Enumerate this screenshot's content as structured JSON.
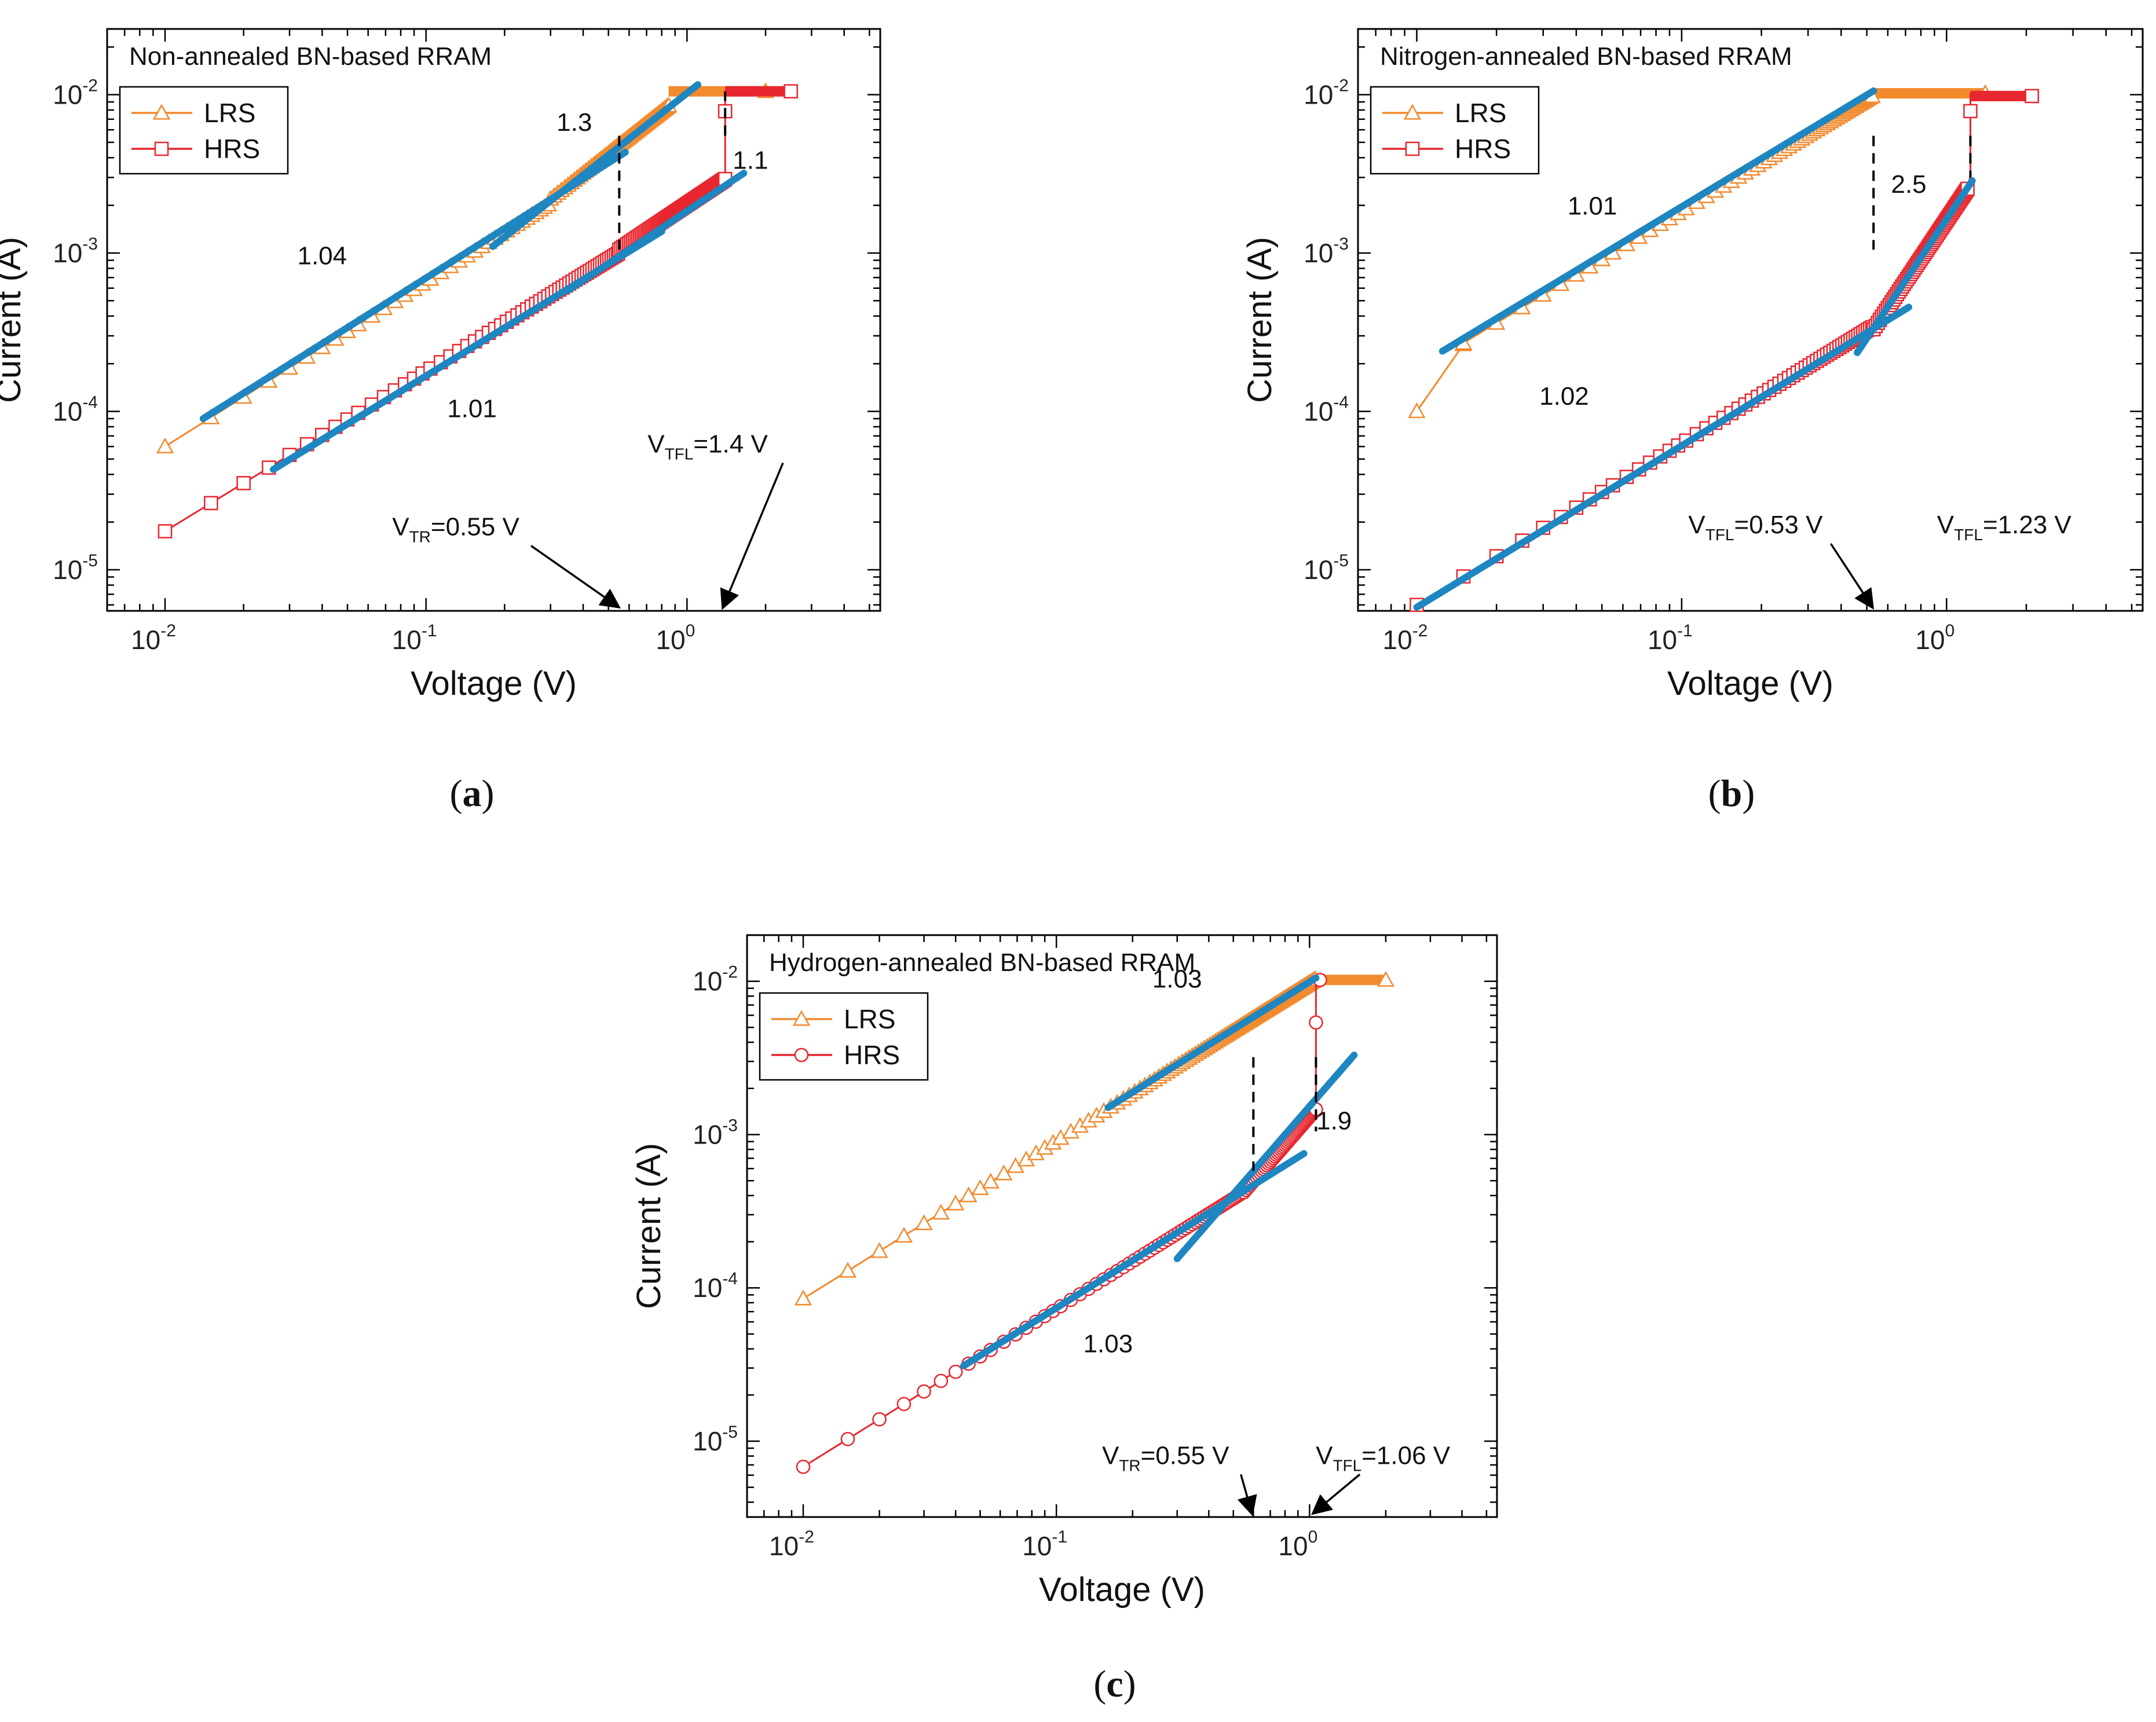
{
  "colors": {
    "lrs": "#f28a2e",
    "hrs": "#e8262f",
    "fit": "#1e86c0",
    "axis": "#000000"
  },
  "chart_data": [
    {
      "id": "a",
      "type": "line",
      "panel_label": "a",
      "title": "Non-annealed BN-based RRAM",
      "xlabel": "Voltage (V)",
      "ylabel": "Current (A)",
      "xscale": "log",
      "yscale": "log",
      "xlim": [
        0.006,
        5.5
      ],
      "ylim": [
        5.5e-06,
        0.026
      ],
      "xticks": [
        {
          "base": "10",
          "exp": "-2",
          "v": 0.01
        },
        {
          "base": "10",
          "exp": "-1",
          "v": 0.1
        },
        {
          "base": "10",
          "exp": "0",
          "v": 1
        }
      ],
      "yticks": [
        {
          "base": "10",
          "exp": "-5",
          "v": 1e-05
        },
        {
          "base": "10",
          "exp": "-4",
          "v": 0.0001
        },
        {
          "base": "10",
          "exp": "-3",
          "v": 0.001
        },
        {
          "base": "10",
          "exp": "-2",
          "v": 0.01
        }
      ],
      "legend": [
        {
          "name": "LRS",
          "marker": "triangle"
        },
        {
          "name": "HRS",
          "marker": "square"
        }
      ],
      "series": [
        {
          "name": "LRS",
          "marker": "triangle",
          "segments": [
            {
              "x0": 0.01,
              "y0": 6e-05,
              "x1": 0.3,
              "y1": 0.0022,
              "slope": 1.04
            },
            {
              "x0": 0.3,
              "y0": 0.0022,
              "x1": 0.85,
              "y1": 0.0105,
              "slope": 1.3
            }
          ],
          "plateau": {
            "x0": 0.85,
            "x1": 2.0,
            "y": 0.0105
          }
        },
        {
          "name": "HRS",
          "marker": "square",
          "segments": [
            {
              "x0": 0.01,
              "y0": 1.75e-05,
              "x1": 0.55,
              "y1": 0.00105,
              "slope": 1.01
            },
            {
              "x0": 0.55,
              "y0": 0.00105,
              "x1": 1.4,
              "y1": 0.003,
              "slope": 1.1
            }
          ],
          "jump": {
            "x": 1.4,
            "y0": 0.003,
            "y1": 0.0105
          },
          "plateau": {
            "x0": 1.4,
            "x1": 2.5,
            "y": 0.0105
          }
        }
      ],
      "fits": [
        {
          "x0": 0.014,
          "x1": 0.58,
          "slope": 1.04,
          "y0": 9e-05
        },
        {
          "x0": 0.18,
          "x1": 1.1,
          "slope": 1.3,
          "y0": 0.0011
        },
        {
          "x0": 0.026,
          "x1": 0.8,
          "slope": 1.01,
          "y0": 4.3e-05
        },
        {
          "x0": 0.35,
          "x1": 1.65,
          "slope": 1.1,
          "y0": 0.00058
        }
      ],
      "annotations": [
        {
          "text": "1.3",
          "x": 0.37,
          "y": 0.0059
        },
        {
          "text": "1.04",
          "x": 0.04,
          "y": 0.00085
        },
        {
          "text": "1.1",
          "x": 1.75,
          "y": 0.0034
        },
        {
          "text": "1.01",
          "x": 0.15,
          "y": 9.2e-05
        }
      ],
      "vlines": [
        {
          "x": 0.55,
          "y0": 0.0055,
          "y1": 0.00105
        },
        {
          "x": 1.4,
          "y0": 0.0055,
          "y1": 0.0105
        }
      ],
      "markers_text": [
        {
          "pre": "V",
          "sub": "TR",
          "post": "=0.55 V",
          "x": 0.13,
          "y": 1.65e-05,
          "arrow_to_x": 0.55
        },
        {
          "pre": "V",
          "sub": "TFL",
          "post": "=1.4 V",
          "x": 1.2,
          "y": 5.5e-05,
          "arrow_to_x": 1.4
        }
      ]
    },
    {
      "id": "b",
      "type": "line",
      "panel_label": "b",
      "title": "Nitrogen-annealed BN-based RRAM",
      "xlabel": "Voltage (V)",
      "ylabel": "Current (A)",
      "xscale": "log",
      "yscale": "log",
      "xlim": [
        0.006,
        5.5
      ],
      "ylim": [
        5.5e-06,
        0.026
      ],
      "xticks": [
        {
          "base": "10",
          "exp": "-2",
          "v": 0.01
        },
        {
          "base": "10",
          "exp": "-1",
          "v": 0.1
        },
        {
          "base": "10",
          "exp": "0",
          "v": 1
        }
      ],
      "yticks": [
        {
          "base": "10",
          "exp": "-5",
          "v": 1e-05
        },
        {
          "base": "10",
          "exp": "-4",
          "v": 0.0001
        },
        {
          "base": "10",
          "exp": "-3",
          "v": 0.001
        },
        {
          "base": "10",
          "exp": "-2",
          "v": 0.01
        }
      ],
      "legend": [
        {
          "name": "LRS",
          "marker": "triangle"
        },
        {
          "name": "HRS",
          "marker": "square"
        }
      ],
      "series": [
        {
          "name": "LRS",
          "marker": "triangle",
          "segments": [
            {
              "x0": 0.01,
              "y0": 0.0001,
              "x1": 0.015,
              "y1": 0.00027,
              "slope": 2.4
            },
            {
              "x0": 0.015,
              "y0": 0.00027,
              "x1": 0.53,
              "y1": 0.0102,
              "slope": 1.01
            }
          ],
          "plateau": {
            "x0": 0.53,
            "x1": 1.4,
            "y": 0.0102
          }
        },
        {
          "name": "HRS",
          "marker": "square",
          "segments": [
            {
              "x0": 0.01,
              "y0": 6e-06,
              "x1": 0.53,
              "y1": 0.00033,
              "slope": 1.02
            },
            {
              "x0": 0.53,
              "y0": 0.00033,
              "x1": 1.2,
              "y1": 0.0031,
              "slope": 2.5
            }
          ],
          "jump": {
            "x": 1.23,
            "y0": 0.0031,
            "y1": 0.0102
          },
          "plateau": {
            "x0": 1.23,
            "x1": 2.1,
            "y": 0.0098
          }
        }
      ],
      "fits": [
        {
          "x0": 0.0125,
          "x1": 0.53,
          "slope": 1.01,
          "y0": 0.00024
        },
        {
          "x0": 0.01,
          "x1": 0.72,
          "slope": 1.02,
          "y0": 5.8e-06
        },
        {
          "x0": 0.46,
          "x1": 1.25,
          "slope": 2.5,
          "y0": 0.000235
        }
      ],
      "annotations": [
        {
          "text": "1.01",
          "x": 0.046,
          "y": 0.00175
        },
        {
          "text": "2.5",
          "x": 0.72,
          "y": 0.0024
        },
        {
          "text": "1.02",
          "x": 0.036,
          "y": 0.00011
        }
      ],
      "vlines": [
        {
          "x": 0.53,
          "y0": 0.0055,
          "y1": 0.00105
        },
        {
          "x": 1.23,
          "y0": 0.0055,
          "y1": 0.003
        }
      ],
      "markers_text": [
        {
          "pre": "V",
          "sub": "TFL",
          "post": "=0.53 V",
          "x": 0.19,
          "y": 1.7e-05,
          "arrow_to_x": 0.53
        },
        {
          "pre": "V",
          "sub": "TFL",
          "post": "=1.23 V",
          "x": 1.65,
          "y": 1.7e-05,
          "arrow_to_x": null
        }
      ]
    },
    {
      "id": "c",
      "type": "line",
      "panel_label": "c",
      "title": "Hydrogen-annealed BN-based RRAM",
      "xlabel": "Voltage (V)",
      "ylabel": "Current (A)",
      "xscale": "log",
      "yscale": "log",
      "xlim": [
        0.006,
        5.5
      ],
      "ylim": [
        3.2e-06,
        0.02
      ],
      "xticks": [
        {
          "base": "10",
          "exp": "-2",
          "v": 0.01
        },
        {
          "base": "10",
          "exp": "-1",
          "v": 0.1
        },
        {
          "base": "10",
          "exp": "0",
          "v": 1
        }
      ],
      "yticks": [
        {
          "base": "10",
          "exp": "-5",
          "v": 1e-05
        },
        {
          "base": "10",
          "exp": "-4",
          "v": 0.0001
        },
        {
          "base": "10",
          "exp": "-3",
          "v": 0.001
        },
        {
          "base": "10",
          "exp": "-2",
          "v": 0.01
        }
      ],
      "legend": [
        {
          "name": "LRS",
          "marker": "triangle"
        },
        {
          "name": "HRS",
          "marker": "circle"
        }
      ],
      "series": [
        {
          "name": "LRS",
          "marker": "triangle",
          "segments": [
            {
              "x0": 0.01,
              "y0": 8.5e-05,
              "x1": 1.06,
              "y1": 0.0102,
              "slope": 1.03
            }
          ],
          "plateau": {
            "x0": 1.06,
            "x1": 2.0,
            "y": 0.0102
          }
        },
        {
          "name": "HRS",
          "marker": "circle",
          "segments": [
            {
              "x0": 0.01,
              "y0": 6.8e-06,
              "x1": 0.55,
              "y1": 0.00042,
              "slope": 1.03
            },
            {
              "x0": 0.55,
              "y0": 0.00042,
              "x1": 1.06,
              "y1": 0.00145,
              "slope": 1.9
            }
          ],
          "jump": {
            "x": 1.06,
            "y0": 0.00145,
            "y1": 0.0102
          },
          "plateau": {
            "x0": 1.06,
            "x1": 1.1,
            "y": 0.0102
          }
        }
      ],
      "fits": [
        {
          "x0": 0.16,
          "x1": 1.06,
          "slope": 1.03,
          "y0": 0.0015
        },
        {
          "x0": 0.043,
          "x1": 0.95,
          "slope": 1.03,
          "y0": 3.1e-05
        },
        {
          "x0": 0.3,
          "x1": 1.5,
          "slope": 1.9,
          "y0": 0.000155
        }
      ],
      "annotations": [
        {
          "text": "1.03",
          "x": 0.3,
          "y": 0.0091
        },
        {
          "text": "1.9",
          "x": 1.25,
          "y": 0.00108
        },
        {
          "text": "1.03",
          "x": 0.16,
          "y": 3.8e-05
        }
      ],
      "vlines": [
        {
          "x": 0.6,
          "y0": 0.0032,
          "y1": 0.00058
        },
        {
          "x": 1.06,
          "y0": 0.0032,
          "y1": 0.00105
        }
      ],
      "markers_text": [
        {
          "pre": "V",
          "sub": "TR",
          "post": "=0.55 V",
          "x": 0.27,
          "y": 7.1e-06,
          "arrow_to_x": 0.6
        },
        {
          "pre": "V",
          "sub": "TFL",
          "post": "=1.06 V",
          "x": 1.95,
          "y": 7.1e-06,
          "arrow_to_x": 1.06
        }
      ]
    }
  ]
}
